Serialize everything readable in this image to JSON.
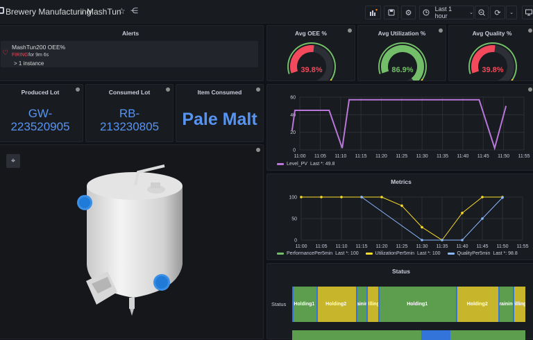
{
  "header": {
    "folder": "Brewery Manufacturing",
    "sep": "/",
    "dashboard": "MashTun",
    "time_range": "Last 1 hour"
  },
  "alerts": {
    "title": "Alerts",
    "name": "MashTun200 OEE%",
    "state": "FIRING",
    "duration": "for 9m 6s",
    "instances": "> 1 instance"
  },
  "gauges": [
    {
      "title": "Avg OEE %",
      "value": "39.8%",
      "fraction": 0.398,
      "color": "#f2495c"
    },
    {
      "title": "Avg Utilization %",
      "value": "86.9%",
      "fraction": 0.869,
      "color": "#73bf69"
    },
    {
      "title": "Avg Quality %",
      "value": "39.8%",
      "fraction": 0.398,
      "color": "#f2495c"
    }
  ],
  "stats": [
    {
      "title": "Produced Lot",
      "line1": "GW-",
      "line2": "223520905"
    },
    {
      "title": "Consumed Lot",
      "line1": "RB-",
      "line2": "213230805"
    },
    {
      "title": "Item Consumed",
      "value": "Pale Malt"
    }
  ],
  "level": {
    "legend_name": "Level_PV",
    "legend_last": "Last *: 49.8",
    "color": "#b877d9"
  },
  "metrics": {
    "title": "Metrics",
    "legend": [
      {
        "name": "PerformancePer5min",
        "last": "Last *: 100",
        "color": "#73bf69"
      },
      {
        "name": "UtilizationPer5min",
        "last": "Last *: 100",
        "color": "#fade2a"
      },
      {
        "name": "QualityPer5min",
        "last": "Last *: 98.8",
        "color": "#8ab8ff"
      }
    ]
  },
  "status": {
    "title": "Status",
    "row_label": "Status",
    "segments": [
      {
        "label": "Holding1",
        "color": "#5c9e4e",
        "w": 34
      },
      {
        "label": "Holding2",
        "color": "#c7b52b",
        "w": 56
      },
      {
        "label": "Draining",
        "color": "#5c9e4e",
        "w": 15
      },
      {
        "label": "Filling",
        "color": "#c7b52b",
        "w": 17
      },
      {
        "label": "Holding1",
        "color": "#5c9e4e",
        "w": 110
      },
      {
        "label": "Holding2",
        "color": "#c7b52b",
        "w": 60
      },
      {
        "label": "Draining",
        "color": "#5c9e4e",
        "w": 20
      },
      {
        "label": "Filling",
        "color": "#c7b52b",
        "w": 18
      }
    ]
  },
  "chart_data": [
    {
      "type": "line",
      "title": "",
      "x": [
        "11:00",
        "11:05",
        "11:10",
        "11:15",
        "11:20",
        "11:25",
        "11:30",
        "11:35",
        "11:40",
        "11:45",
        "11:50",
        "11:55"
      ],
      "ylim": [
        0,
        60
      ],
      "yticks": [
        0,
        20,
        40,
        60
      ],
      "series": [
        {
          "name": "Level_PV",
          "points": [
            [
              -1.9,
              22
            ],
            [
              -1.2,
              45
            ],
            [
              7.2,
              45
            ],
            [
              10.4,
              2
            ],
            [
              12.1,
              57
            ],
            [
              44.0,
              57
            ],
            [
              47.8,
              2
            ],
            [
              50.6,
              50
            ]
          ]
        }
      ]
    },
    {
      "type": "line",
      "title": "Metrics",
      "x": [
        "11:00",
        "11:05",
        "11:10",
        "11:15",
        "11:20",
        "11:25",
        "11:30",
        "11:35",
        "11:40",
        "11:45",
        "11:50",
        "11:55"
      ],
      "ylim": [
        0,
        100
      ],
      "yticks": [
        0,
        50,
        100
      ],
      "series": [
        {
          "name": "UtilizationPer5min",
          "x": [
            0,
            5,
            10,
            15,
            20,
            25,
            30,
            35,
            40,
            45,
            50
          ],
          "values": [
            100,
            100,
            100,
            100,
            100,
            80,
            30,
            0,
            63,
            100,
            100
          ]
        },
        {
          "name": "QualityPer5min",
          "x": [
            15,
            30,
            35,
            40,
            45,
            50
          ],
          "values": [
            100,
            0,
            0,
            0,
            50,
            98.8
          ]
        }
      ]
    }
  ]
}
